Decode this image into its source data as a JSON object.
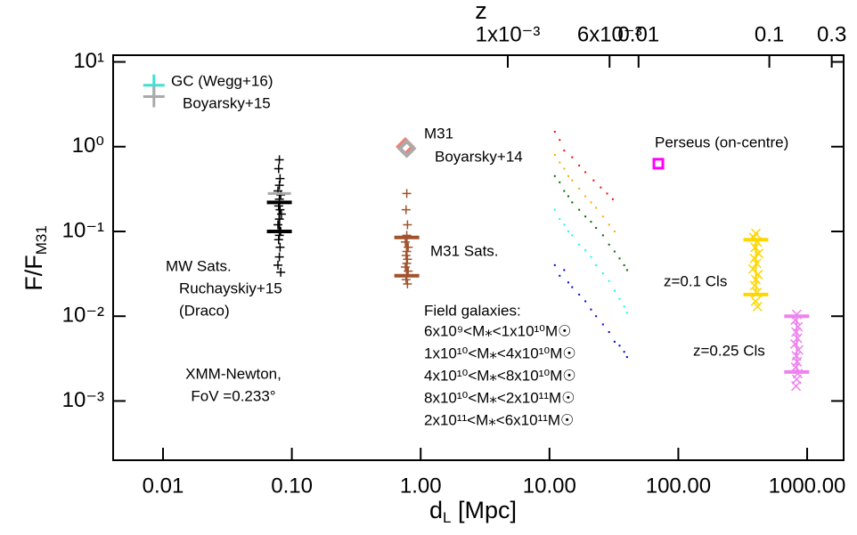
{
  "chart_data": {
    "type": "scatter",
    "xlabel": [
      "d",
      "L",
      " [Mpc]"
    ],
    "ylabel": [
      "F/F",
      "M31"
    ],
    "x2label": "z",
    "log": true,
    "xlim": [
      0.0041,
      1920
    ],
    "ylim": [
      0.0002,
      12
    ],
    "x2lim": [
      9.6e-07,
      0.37
    ],
    "xticks": [
      {
        "value": 0.01,
        "label": "0.01"
      },
      {
        "value": 0.1,
        "label": "0.10"
      },
      {
        "value": 1,
        "label": "1.00"
      },
      {
        "value": 10,
        "label": "10.00"
      },
      {
        "value": 100,
        "label": "100.00"
      },
      {
        "value": 1000,
        "label": "1000.00"
      }
    ],
    "yticks": [
      {
        "value": 10,
        "label": "10¹"
      },
      {
        "value": 1,
        "label": "10⁰"
      },
      {
        "value": 0.1,
        "label": "10⁻¹"
      },
      {
        "value": 0.01,
        "label": "10⁻²"
      },
      {
        "value": 0.001,
        "label": "10⁻³"
      }
    ],
    "x2ticks": [
      {
        "value": 0.001,
        "label": "1x10⁻³"
      },
      {
        "value": 0.006,
        "label": "6x10⁻³"
      },
      {
        "value": 0.01,
        "label": "0.01"
      },
      {
        "value": 0.1,
        "label": "0.1"
      },
      {
        "value": 0.3,
        "label": "0.3"
      }
    ],
    "annotations": [
      "XMM-Newton,",
      "FoV =0.233°"
    ],
    "field_title": "Field galaxies:",
    "series": [
      {
        "name": "GC (Wegg+16)",
        "color": "#40e0d0",
        "marker": "cross-big",
        "x": [
          0.0085
        ],
        "values": [
          5.3
        ]
      },
      {
        "name": "Boyarsky+15",
        "color": "#aaaaaa",
        "marker": "cross-big",
        "x": [
          0.0085
        ],
        "values": [
          3.9
        ]
      },
      {
        "name": "M31",
        "color": "#f08070",
        "marker": "diamond",
        "x": [
          0.76
        ],
        "values": [
          1.0
        ]
      },
      {
        "name": "Boyarsky+14",
        "color": "#aaaaaa",
        "marker": "diamond",
        "x": [
          0.78
        ],
        "values": [
          0.95
        ]
      },
      {
        "name": "Perseus (on-centre)",
        "color": "#ff00ff",
        "marker": "square",
        "x": [
          70
        ],
        "values": [
          0.63
        ]
      },
      {
        "name": "MW Sats.",
        "color": "#000000",
        "marker": "plus",
        "x": [
          0.08,
          0.079,
          0.081,
          0.08,
          0.078,
          0.082,
          0.08,
          0.079,
          0.081,
          0.083,
          0.08,
          0.078,
          0.082,
          0.08,
          0.079,
          0.081,
          0.08,
          0.078,
          0.082
        ],
        "values": [
          0.7,
          0.55,
          0.42,
          0.35,
          0.3,
          0.27,
          0.24,
          0.2,
          0.18,
          0.16,
          0.14,
          0.12,
          0.1,
          0.09,
          0.08,
          0.065,
          0.05,
          0.04,
          0.033
        ],
        "range": [
          0.1,
          0.22
        ]
      },
      {
        "name": "Ruchayskiy+15",
        "note": "(Draco)",
        "color": "#aaaaaa",
        "marker": "bar",
        "x": [
          0.08
        ],
        "values": [
          0.28
        ]
      },
      {
        "name": "M31 Sats.",
        "color": "#a0522d",
        "marker": "plus",
        "x": [
          0.78,
          0.77,
          0.79,
          0.78,
          0.76,
          0.8,
          0.78,
          0.77,
          0.79,
          0.78,
          0.76,
          0.8,
          0.78,
          0.77,
          0.79
        ],
        "values": [
          0.28,
          0.18,
          0.12,
          0.09,
          0.075,
          0.065,
          0.058,
          0.052,
          0.047,
          0.042,
          0.038,
          0.034,
          0.03,
          0.027,
          0.024
        ],
        "range": [
          0.03,
          0.085
        ]
      },
      {
        "name": "z=0.1 Cls",
        "color": "#ffd700",
        "marker": "x",
        "x": [
          400,
          385,
          410,
          395,
          420,
          390,
          405,
          380,
          415,
          400,
          392,
          408,
          398,
          412
        ],
        "values": [
          0.095,
          0.085,
          0.075,
          0.065,
          0.055,
          0.048,
          0.042,
          0.036,
          0.031,
          0.027,
          0.023,
          0.019,
          0.015,
          0.013
        ],
        "range": [
          0.018,
          0.08
        ]
      },
      {
        "name": "z=0.25 Cls",
        "color": "#ee82ee",
        "marker": "x",
        "x": [
          830,
          810,
          850,
          820,
          840,
          805,
          860,
          825,
          835,
          815,
          845,
          830,
          820
        ],
        "values": [
          0.0105,
          0.009,
          0.0075,
          0.0065,
          0.0055,
          0.0047,
          0.004,
          0.0034,
          0.0029,
          0.0025,
          0.0021,
          0.0018,
          0.0015
        ],
        "range": [
          0.0022,
          0.01
        ]
      },
      {
        "name": "6x10⁹<M⁎<1x10¹⁰M☉",
        "color": "#0000cd",
        "marker": "dot",
        "legend": true,
        "x": [
          11,
          12,
          13,
          14,
          15,
          17,
          19,
          21,
          23,
          26,
          29,
          32,
          35,
          38,
          40
        ],
        "values": [
          0.04,
          0.03,
          0.035,
          0.025,
          0.022,
          0.018,
          0.015,
          0.012,
          0.01,
          0.008,
          0.0065,
          0.005,
          0.0045,
          0.0038,
          0.0033
        ]
      },
      {
        "name": "1x10¹⁰<M⁎<4x10¹⁰M☉",
        "color": "#00ffff",
        "marker": "dot",
        "legend": true,
        "x": [
          11,
          12,
          13,
          14,
          15,
          17,
          19,
          21,
          23,
          26,
          29,
          32,
          35,
          38,
          40
        ],
        "values": [
          0.18,
          0.14,
          0.12,
          0.1,
          0.09,
          0.07,
          0.06,
          0.05,
          0.04,
          0.032,
          0.026,
          0.02,
          0.016,
          0.013,
          0.011
        ]
      },
      {
        "name": "4x10¹⁰<M⁎<8x10¹⁰M☉",
        "color": "#006400",
        "marker": "dot",
        "legend": true,
        "x": [
          11,
          12,
          13,
          14,
          15,
          17,
          19,
          21,
          23,
          26,
          29,
          32,
          35,
          38,
          40
        ],
        "values": [
          0.45,
          0.38,
          0.3,
          0.26,
          0.22,
          0.18,
          0.15,
          0.13,
          0.11,
          0.09,
          0.07,
          0.058,
          0.048,
          0.04,
          0.035
        ]
      },
      {
        "name": "8x10¹⁰<M⁎<2x10¹¹M☉",
        "color": "#ffa500",
        "marker": "dot",
        "legend": true,
        "x": [
          11,
          12,
          13,
          14,
          15,
          17,
          19,
          21,
          23,
          26,
          29,
          32
        ],
        "values": [
          0.8,
          0.65,
          0.55,
          0.45,
          0.4,
          0.32,
          0.26,
          0.22,
          0.19,
          0.15,
          0.12,
          0.1
        ]
      },
      {
        "name": "2x10¹¹<M⁎<6x10¹¹M☉",
        "color": "#ff0000",
        "marker": "dot",
        "legend": true,
        "x": [
          11,
          12,
          13,
          15,
          17,
          19,
          22,
          25,
          28,
          31
        ],
        "values": [
          1.5,
          1.2,
          0.9,
          0.75,
          0.6,
          0.5,
          0.4,
          0.33,
          0.28,
          0.24
        ]
      }
    ]
  }
}
